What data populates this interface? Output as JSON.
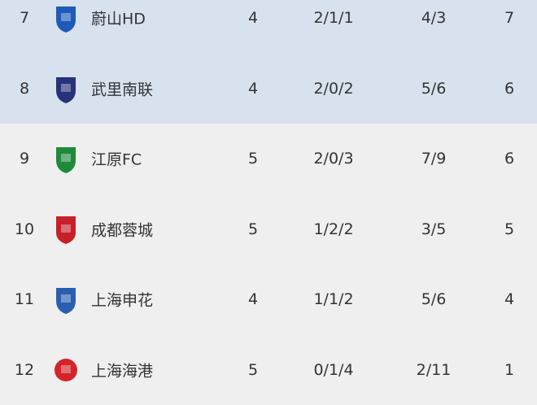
{
  "rows": [
    {
      "rank": "7",
      "team": "蔚山HD",
      "played": "4",
      "wdl": "2/1/1",
      "goals": "4/3",
      "points": "7",
      "logo": "ulsan-crest",
      "color": "#1e5bb8",
      "highlight": true
    },
    {
      "rank": "8",
      "team": "武里南联",
      "played": "4",
      "wdl": "2/0/2",
      "goals": "5/6",
      "points": "6",
      "logo": "buriram-crest",
      "color": "#26327a",
      "highlight": true
    },
    {
      "rank": "9",
      "team": "江原FC",
      "played": "5",
      "wdl": "2/0/3",
      "goals": "7/9",
      "points": "6",
      "logo": "gangwon-crest",
      "color": "#1f8a3c",
      "highlight": false
    },
    {
      "rank": "10",
      "team": "成都蓉城",
      "played": "5",
      "wdl": "1/2/2",
      "goals": "3/5",
      "points": "5",
      "logo": "chengdu-crest",
      "color": "#c8202a",
      "highlight": false
    },
    {
      "rank": "11",
      "team": "上海申花",
      "played": "4",
      "wdl": "1/1/2",
      "goals": "5/6",
      "points": "4",
      "logo": "shenhua-crest",
      "color": "#2a5fb0",
      "highlight": false
    },
    {
      "rank": "12",
      "team": "上海海港",
      "played": "5",
      "wdl": "0/1/4",
      "goals": "2/11",
      "points": "1",
      "logo": "port-crest",
      "color": "#d3242b",
      "highlight": false
    }
  ]
}
